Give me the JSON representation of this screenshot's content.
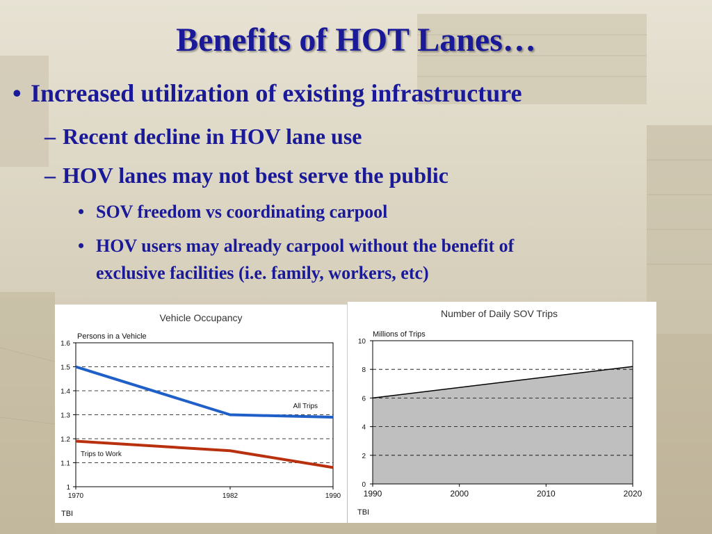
{
  "slide": {
    "title": "Benefits of HOT Lanes…",
    "bullets": [
      {
        "marker": "•",
        "text": "Increased utilization of existing infrastructure"
      },
      {
        "marker": "–",
        "text": "Recent decline in HOV lane use"
      },
      {
        "marker": "–",
        "text": "HOV lanes may not best serve the public"
      },
      {
        "marker": "•",
        "text": "SOV freedom vs coordinating carpool"
      },
      {
        "marker": "•",
        "text": "HOV users may already carpool without the benefit of"
      },
      {
        "marker": "",
        "text": "exclusive facilities (i.e. family, workers, etc)"
      }
    ]
  },
  "colors": {
    "title": "#1a1a99",
    "all_trips": "#1f5fc8",
    "trips_to_work": "#b8300e",
    "area_fill": "#bfbfbf"
  },
  "chart_data": [
    {
      "type": "line",
      "title": "Vehicle Occupancy",
      "ylabel": "Persons in a Vehicle",
      "xlabel": "",
      "x": [
        1970,
        1982,
        1990
      ],
      "x_ticks": [
        "1970",
        "1982",
        "1990"
      ],
      "y_ticks": [
        "1",
        "1.1",
        "1.2",
        "1.3",
        "1.4",
        "1.5",
        "1.6"
      ],
      "ylim": [
        1,
        1.6
      ],
      "grid": "dashed horizontal",
      "series": [
        {
          "name": "All Trips",
          "values": [
            1.5,
            1.3,
            1.29
          ]
        },
        {
          "name": "Trips to Work",
          "values": [
            1.19,
            1.15,
            1.08
          ]
        }
      ],
      "source": "TBI"
    },
    {
      "type": "area",
      "title": "Number of Daily SOV Trips",
      "ylabel": "Millions of Trips",
      "xlabel": "",
      "x": [
        1990,
        2020
      ],
      "x_ticks": [
        "1990",
        "2000",
        "2010",
        "2020"
      ],
      "y_ticks": [
        "0",
        "2",
        "4",
        "6",
        "8",
        "10"
      ],
      "ylim": [
        0,
        10
      ],
      "grid": "dashed horizontal",
      "series": [
        {
          "values": [
            6.0,
            8.2
          ]
        }
      ],
      "source": "TBI"
    }
  ]
}
